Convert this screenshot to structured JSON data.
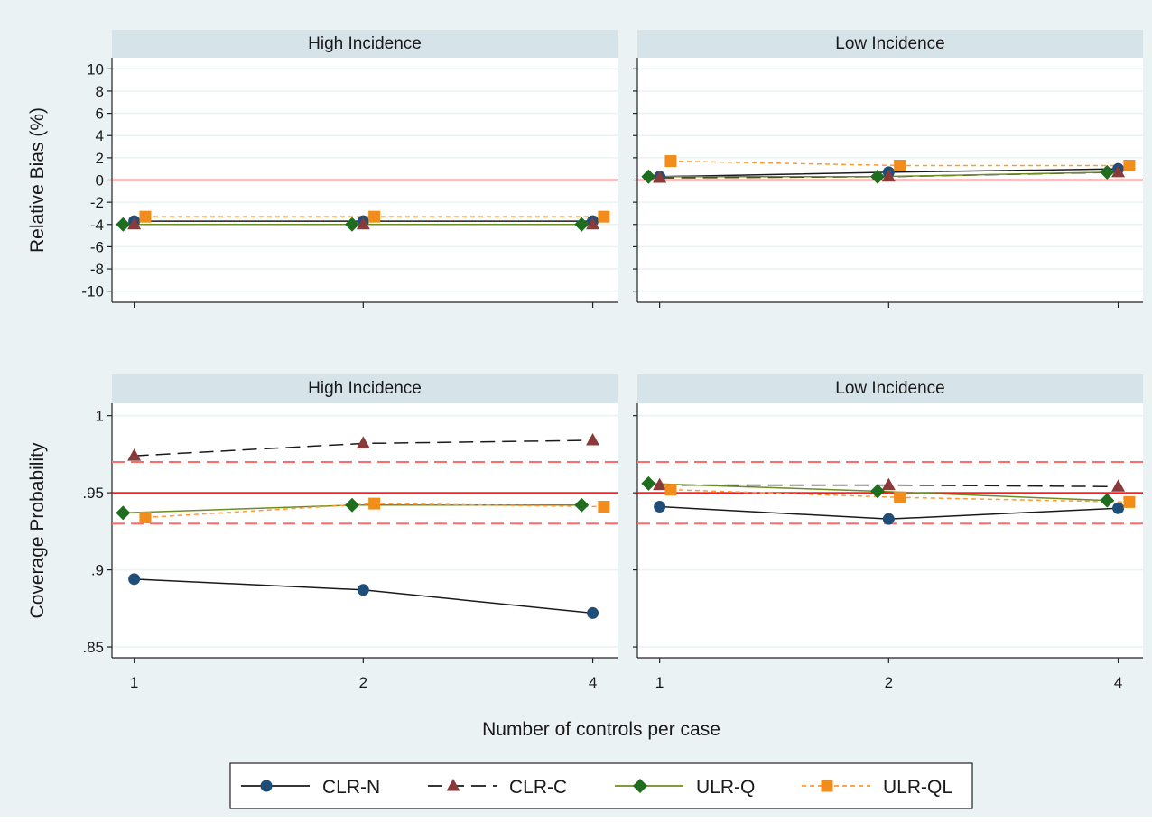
{
  "colors": {
    "outer_background": "#eaf2f3",
    "plot_background": "#ffffff",
    "strip_background": "#d6e3e8",
    "grid": "#eaf2f3",
    "reference_line": "#ff0000",
    "reference_band": "#ff6b6b"
  },
  "xaxis": {
    "title": "Number of controls per case",
    "ticks": [
      "1",
      "2",
      "4"
    ]
  },
  "legend": {
    "placement": "bottom",
    "items": [
      {
        "label": "CLR-N",
        "color": "#1a1a1a",
        "marker_color": "#1f4e79",
        "marker": "circle",
        "dash": "solid"
      },
      {
        "label": "CLR-C",
        "color": "#1a1a1a",
        "marker_color": "#8b3a3a",
        "marker": "triangle",
        "dash": "longdash"
      },
      {
        "label": "ULR-Q",
        "color": "#6b8e23",
        "marker_color": "#1f6d1f",
        "marker": "diamond",
        "dash": "solid"
      },
      {
        "label": "ULR-QL",
        "color": "#ff9933",
        "marker_color": "#f28c1a",
        "marker": "square",
        "dash": "shortdash"
      }
    ]
  },
  "chart_data": [
    {
      "type": "line",
      "panel": "top-left",
      "title": "High Incidence",
      "ylabel": "Relative Bias (%)",
      "xlabel": "Number of controls per case",
      "categories": [
        "1",
        "2",
        "4"
      ],
      "ylim": [
        -11,
        11
      ],
      "yticks": [
        -10,
        -8,
        -6,
        -4,
        -2,
        0,
        2,
        4,
        6,
        8,
        10
      ],
      "ytick_labels": [
        "-10",
        "-8",
        "-6",
        "-4",
        "-2",
        "0",
        "2",
        "4",
        "6",
        "8",
        "10"
      ],
      "grid": true,
      "reference_lines": [
        {
          "y": 0,
          "style": "solid"
        }
      ],
      "series": [
        {
          "name": "CLR-N",
          "values": [
            -3.7,
            -3.7,
            -3.7
          ]
        },
        {
          "name": "CLR-C",
          "values": [
            -4.0,
            -4.0,
            -4.0
          ]
        },
        {
          "name": "ULR-Q",
          "values": [
            -4.0,
            -4.0,
            -4.0
          ]
        },
        {
          "name": "ULR-QL",
          "values": [
            -3.3,
            -3.3,
            -3.3
          ]
        }
      ]
    },
    {
      "type": "line",
      "panel": "top-right",
      "title": "Low Incidence",
      "ylabel": "",
      "xlabel": "Number of controls per case",
      "categories": [
        "1",
        "2",
        "4"
      ],
      "ylim": [
        -11,
        11
      ],
      "yticks": [
        -10,
        -8,
        -6,
        -4,
        -2,
        0,
        2,
        4,
        6,
        8,
        10
      ],
      "ytick_labels": [],
      "grid": true,
      "reference_lines": [
        {
          "y": 0,
          "style": "solid"
        }
      ],
      "series": [
        {
          "name": "CLR-N",
          "values": [
            0.3,
            0.7,
            1.0
          ]
        },
        {
          "name": "CLR-C",
          "values": [
            0.2,
            0.3,
            0.7
          ]
        },
        {
          "name": "ULR-Q",
          "values": [
            0.3,
            0.3,
            0.7
          ]
        },
        {
          "name": "ULR-QL",
          "values": [
            1.7,
            1.3,
            1.3
          ]
        }
      ]
    },
    {
      "type": "line",
      "panel": "bottom-left",
      "title": "High Incidence",
      "ylabel": "Coverage Probability",
      "xlabel": "Number of controls per case",
      "categories": [
        "1",
        "2",
        "4"
      ],
      "ylim": [
        0.843,
        1.008
      ],
      "yticks": [
        0.85,
        0.9,
        0.95,
        1.0
      ],
      "ytick_labels": [
        ".85",
        ".9",
        ".95",
        "1"
      ],
      "grid": true,
      "reference_lines": [
        {
          "y": 0.95,
          "style": "solid"
        },
        {
          "y": 0.93,
          "style": "dashed"
        },
        {
          "y": 0.97,
          "style": "dashed"
        }
      ],
      "series": [
        {
          "name": "CLR-N",
          "values": [
            0.894,
            0.887,
            0.872
          ]
        },
        {
          "name": "CLR-C",
          "values": [
            0.974,
            0.982,
            0.984
          ]
        },
        {
          "name": "ULR-Q",
          "values": [
            0.937,
            0.942,
            0.942
          ]
        },
        {
          "name": "ULR-QL",
          "values": [
            0.934,
            0.943,
            0.941
          ]
        }
      ]
    },
    {
      "type": "line",
      "panel": "bottom-right",
      "title": "Low Incidence",
      "ylabel": "",
      "xlabel": "Number of controls per case",
      "categories": [
        "1",
        "2",
        "4"
      ],
      "ylim": [
        0.843,
        1.008
      ],
      "yticks": [
        0.85,
        0.9,
        0.95,
        1.0
      ],
      "ytick_labels": [],
      "grid": true,
      "reference_lines": [
        {
          "y": 0.95,
          "style": "solid"
        },
        {
          "y": 0.93,
          "style": "dashed"
        },
        {
          "y": 0.97,
          "style": "dashed"
        }
      ],
      "series": [
        {
          "name": "CLR-N",
          "values": [
            0.941,
            0.933,
            0.94
          ]
        },
        {
          "name": "CLR-C",
          "values": [
            0.955,
            0.955,
            0.954
          ]
        },
        {
          "name": "ULR-Q",
          "values": [
            0.956,
            0.951,
            0.945
          ]
        },
        {
          "name": "ULR-QL",
          "values": [
            0.952,
            0.947,
            0.944
          ]
        }
      ]
    }
  ]
}
